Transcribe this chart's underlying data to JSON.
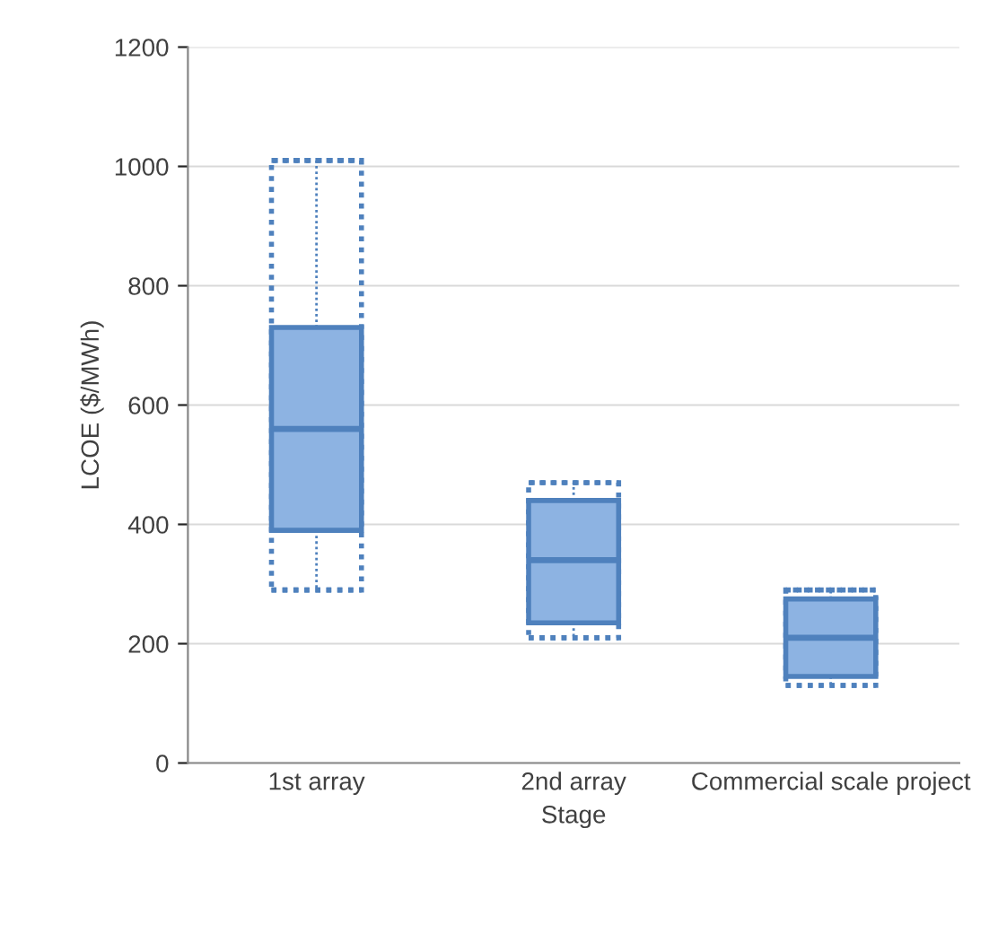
{
  "chart_data": {
    "type": "box",
    "xlabel": "Stage",
    "ylabel": "LCOE ($/MWh)",
    "categories": [
      "1st array",
      "2nd array",
      "Commercial scale project"
    ],
    "boxes": [
      {
        "low": 290,
        "q1": 390,
        "median": 560,
        "q3": 730,
        "high": 1010
      },
      {
        "low": 210,
        "q1": 235,
        "median": 340,
        "q3": 440,
        "high": 470
      },
      {
        "low": 130,
        "q1": 145,
        "median": 210,
        "q3": 275,
        "high": 290
      }
    ],
    "color": "#4f81bd",
    "ylim": [
      0,
      1200
    ],
    "yticks": [
      0,
      200,
      400,
      600,
      800,
      1000,
      1200
    ],
    "grid": "y"
  }
}
